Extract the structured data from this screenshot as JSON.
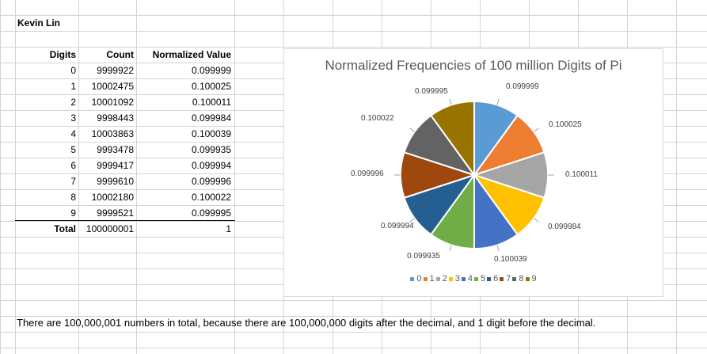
{
  "author": "Kevin Lin",
  "table": {
    "headers": [
      "Digits",
      "Count",
      "Normalized Value"
    ],
    "rows": [
      {
        "digit": "0",
        "count": "9999922",
        "normalized": "0.099999"
      },
      {
        "digit": "1",
        "count": "10002475",
        "normalized": "0.100025"
      },
      {
        "digit": "2",
        "count": "10001092",
        "normalized": "0.100011"
      },
      {
        "digit": "3",
        "count": "9998443",
        "normalized": "0.099984"
      },
      {
        "digit": "4",
        "count": "10003863",
        "normalized": "0.100039"
      },
      {
        "digit": "5",
        "count": "9993478",
        "normalized": "0.099935"
      },
      {
        "digit": "6",
        "count": "9999417",
        "normalized": "0.099994"
      },
      {
        "digit": "7",
        "count": "9999610",
        "normalized": "0.099996"
      },
      {
        "digit": "8",
        "count": "10002180",
        "normalized": "0.100022"
      },
      {
        "digit": "9",
        "count": "9999521",
        "normalized": "0.099995"
      }
    ],
    "total_label": "Total",
    "total_count": "100000001",
    "total_normalized": "1"
  },
  "chart_data": {
    "type": "pie",
    "title": "Normalized Frequencies of 100 million Digits of Pi",
    "categories": [
      "0",
      "1",
      "2",
      "3",
      "4",
      "5",
      "6",
      "7",
      "8",
      "9"
    ],
    "values": [
      0.099999,
      0.100025,
      0.100011,
      0.099984,
      0.100039,
      0.099935,
      0.099994,
      0.099996,
      0.100022,
      0.099995
    ],
    "labels": [
      "0.099999",
      "0.100025",
      "0.100011",
      "0.099984",
      "0.100039",
      "0.099935",
      "0.099994",
      "0.099996",
      "0.100022",
      "0.099995"
    ],
    "colors": [
      "#5b9bd5",
      "#ed7d31",
      "#a5a5a5",
      "#ffc000",
      "#4472c4",
      "#70ad47",
      "#255e91",
      "#9e480e",
      "#636363",
      "#997300"
    ],
    "legend_position": "bottom"
  },
  "footnote": "There are 100,000,001 numbers in total, because there are 100,000,000 digits after the decimal, and 1 digit before the decimal."
}
